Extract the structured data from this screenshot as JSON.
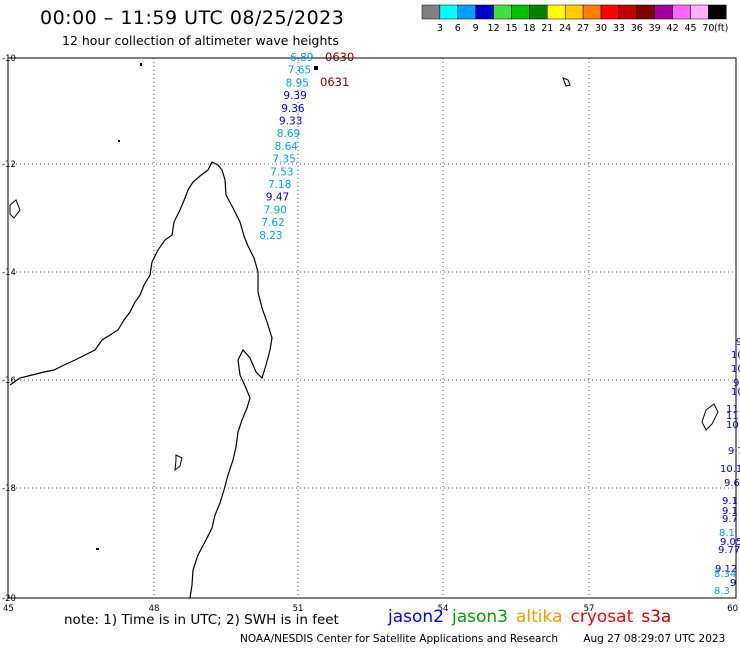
{
  "header": {
    "title": "00:00 – 11:59 UTC 08/25/2023",
    "subtitle": "12 hour collection of altimeter wave heights"
  },
  "color_scale": {
    "labels": [
      "3",
      "6",
      "9",
      "12",
      "15",
      "18",
      "21",
      "24",
      "27",
      "30",
      "33",
      "36",
      "39",
      "42",
      "45",
      "70"
    ],
    "unit": "(ft)",
    "colors": [
      "#808080",
      "#00ffff",
      "#00a0ff",
      "#0000cd",
      "#40e040",
      "#00c000",
      "#008000",
      "#ffff00",
      "#ffcc00",
      "#ff8000",
      "#ff0000",
      "#c00000",
      "#800000",
      "#a000a0",
      "#ff66ff",
      "#ffb0ff",
      "#000000"
    ]
  },
  "map": {
    "lat_labels": [
      "-10",
      "-12",
      "-14",
      "-16",
      "-18",
      "-20"
    ],
    "lon_labels": [
      "45",
      "48",
      "51",
      "54",
      "57",
      "60"
    ],
    "track_times": [
      {
        "label": "0630",
        "color": "#800000"
      },
      {
        "label": "0631",
        "color": "#800000"
      }
    ],
    "track_values": [
      {
        "v": "6.89",
        "c": "#00a0ff"
      },
      {
        "v": "7.65",
        "c": "#00a0ff"
      },
      {
        "v": "8.95",
        "c": "#00a0ff"
      },
      {
        "v": "9.39",
        "c": "#0000cd"
      },
      {
        "v": "9.36",
        "c": "#0000cd"
      },
      {
        "v": "9.33",
        "c": "#0000cd"
      },
      {
        "v": "8.69",
        "c": "#00a0ff"
      },
      {
        "v": "8.64",
        "c": "#00a0ff"
      },
      {
        "v": "7.35",
        "c": "#00a0ff"
      },
      {
        "v": "7.53",
        "c": "#00a0ff"
      },
      {
        "v": "7.18",
        "c": "#00a0ff"
      },
      {
        "v": "9.47",
        "c": "#0000cd"
      },
      {
        "v": "7.90",
        "c": "#00a0ff"
      },
      {
        "v": "7.62",
        "c": "#00a0ff"
      },
      {
        "v": "8.23",
        "c": "#00a0ff"
      }
    ],
    "edge_values": [
      {
        "v": "9",
        "c": "#0000cd"
      },
      {
        "v": "10",
        "c": "#0000cd"
      },
      {
        "v": "10",
        "c": "#0000cd"
      },
      {
        "v": "9",
        "c": "#0000cd"
      },
      {
        "v": "10",
        "c": "#0000cd"
      },
      {
        "v": "11",
        "c": "#0000cd"
      },
      {
        "v": "11",
        "c": "#0000cd"
      },
      {
        "v": "10.",
        "c": "#0000cd"
      },
      {
        "v": "9.7",
        "c": "#0000cd"
      },
      {
        "v": "10.1",
        "c": "#0000cd"
      },
      {
        "v": "9.6",
        "c": "#0000cd"
      },
      {
        "v": "9.1",
        "c": "#0000cd"
      },
      {
        "v": "9.1",
        "c": "#0000cd"
      },
      {
        "v": "9.7",
        "c": "#0000cd"
      },
      {
        "v": "8.1",
        "c": "#00a0ff"
      },
      {
        "v": "9.05",
        "c": "#0000cd"
      },
      {
        "v": "9.77",
        "c": "#0000cd"
      },
      {
        "v": "9.12",
        "c": "#0000cd"
      },
      {
        "v": "8.34",
        "c": "#00a0ff"
      },
      {
        "v": "9",
        "c": "#0000cd"
      },
      {
        "v": "8.3",
        "c": "#00a0ff"
      }
    ]
  },
  "footer": {
    "note": "note: 1) Time is in UTC; 2) SWH is in feet",
    "satellites": [
      {
        "name": "jason2",
        "color": "#0000ff"
      },
      {
        "name": "jason3",
        "color": "#00a000"
      },
      {
        "name": "altika",
        "color": "#ff9900"
      },
      {
        "name": "cryosat",
        "color": "#ff0000"
      },
      {
        "name": "s3a",
        "color": "#c00000"
      }
    ],
    "credit": "NOAA/NESDIS Center for Satellite Applications and Research",
    "timestamp": "Aug 27 08:29:07 UTC 2023"
  }
}
